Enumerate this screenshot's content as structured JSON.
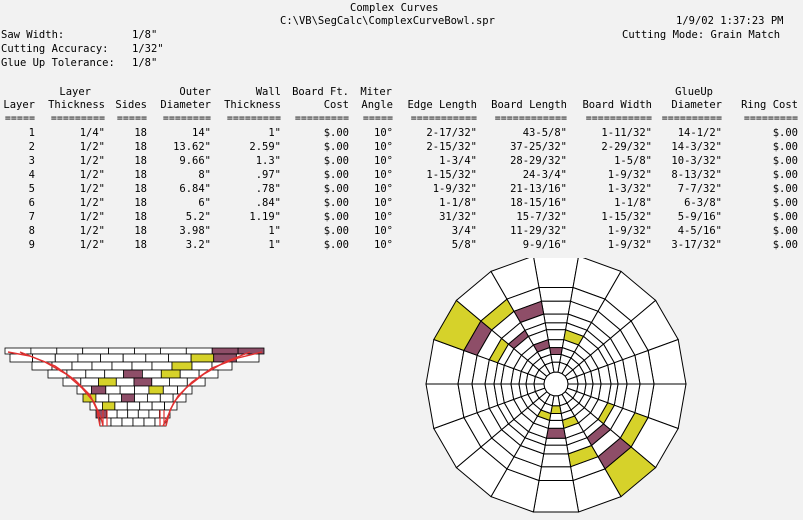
{
  "header": {
    "title": "Complex Curves",
    "path": "C:\\VB\\SegCalc\\ComplexCurveBowl.spr",
    "datetime": "1/9/02 1:37:23 PM",
    "cutting_mode": "Cutting Mode: Grain Match",
    "saw_width_label": "Saw Width:",
    "saw_width": "1/8\"",
    "cutting_accuracy_label": "Cutting Accuracy:",
    "cutting_accuracy": "1/32\"",
    "glue_up_label": "Glue Up Tolerance:",
    "glue_up": "1/8\""
  },
  "table": {
    "head1": [
      "",
      "Layer",
      "",
      "Outer",
      "Wall",
      "Board Ft.",
      "Miter",
      "",
      "",
      "",
      "GlueUp",
      ""
    ],
    "head2": [
      "Layer",
      "Thickness",
      "Sides",
      "Diameter",
      "Thickness",
      "Cost",
      "Angle",
      "Edge Length",
      "Board Length",
      "Board Width",
      "Diameter",
      "Ring Cost"
    ],
    "sep": [
      "=====",
      "=========",
      "=====",
      "========",
      "=========",
      "=========",
      "=====",
      "===========",
      "============",
      "===========",
      "==========",
      "========="
    ],
    "rows": [
      [
        "1",
        "1/4\"",
        "18",
        "14\"",
        "1\"",
        "$.00",
        "10°",
        "2-17/32\"",
        "43-5/8\"",
        "1-11/32\"",
        "14-1/2\"",
        "$.00"
      ],
      [
        "2",
        "1/2\"",
        "18",
        "13.62\"",
        "2.59\"",
        "$.00",
        "10°",
        "2-15/32\"",
        "37-25/32\"",
        "2-29/32\"",
        "14-3/32\"",
        "$.00"
      ],
      [
        "3",
        "1/2\"",
        "18",
        "9.66\"",
        "1.3\"",
        "$.00",
        "10°",
        "1-3/4\"",
        "28-29/32\"",
        "1-5/8\"",
        "10-3/32\"",
        "$.00"
      ],
      [
        "4",
        "1/2\"",
        "18",
        "8\"",
        ".97\"",
        "$.00",
        "10°",
        "1-15/32\"",
        "24-3/4\"",
        "1-9/32\"",
        "8-13/32\"",
        "$.00"
      ],
      [
        "5",
        "1/2\"",
        "18",
        "6.84\"",
        ".78\"",
        "$.00",
        "10°",
        "1-9/32\"",
        "21-13/16\"",
        "1-3/32\"",
        "7-7/32\"",
        "$.00"
      ],
      [
        "6",
        "1/2\"",
        "18",
        "6\"",
        ".84\"",
        "$.00",
        "10°",
        "1-1/8\"",
        "18-15/16\"",
        "1-1/8\"",
        "6-3/8\"",
        "$.00"
      ],
      [
        "7",
        "1/2\"",
        "18",
        "5.2\"",
        "1.19\"",
        "$.00",
        "10°",
        "31/32\"",
        "15-7/32\"",
        "1-15/32\"",
        "5-9/16\"",
        "$.00"
      ],
      [
        "8",
        "1/2\"",
        "18",
        "3.98\"",
        "1\"",
        "$.00",
        "10°",
        "3/4\"",
        "11-29/32\"",
        "1-9/32\"",
        "4-5/16\"",
        "$.00"
      ],
      [
        "9",
        "1/2\"",
        "18",
        "3.2\"",
        "1\"",
        "$.00",
        "10°",
        "5/8\"",
        "9-9/16\"",
        "1-9/32\"",
        "3-17/32\"",
        "$.00"
      ]
    ]
  },
  "colors": {
    "yellow": "#d6d22a",
    "maroon": "#8e4e68",
    "profile_red": "#e03030",
    "background": "#f2f2f2"
  }
}
